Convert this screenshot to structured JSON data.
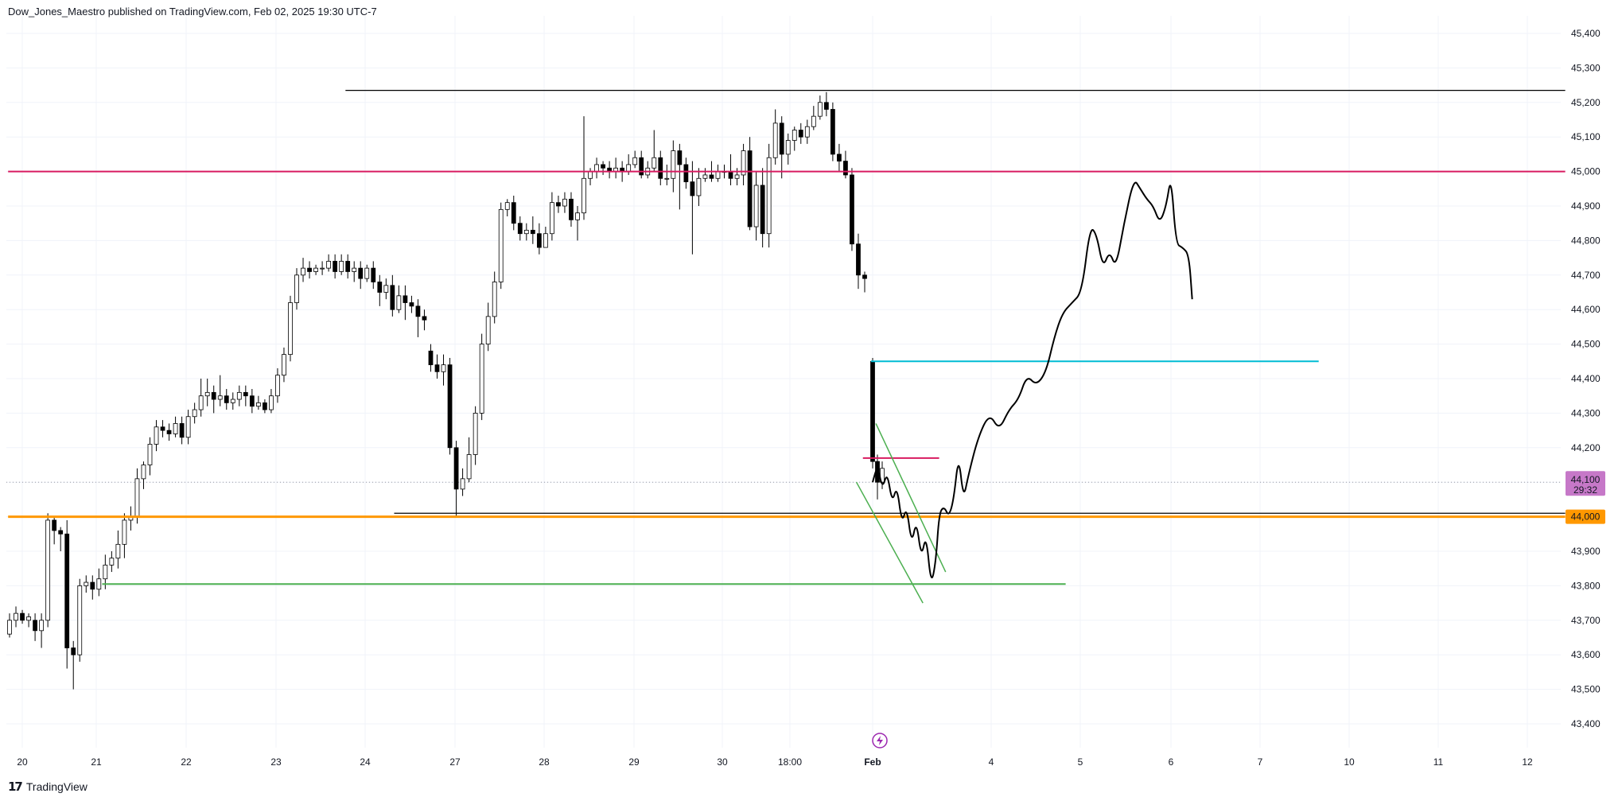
{
  "header": {
    "attribution": "Dow_Jones_Maestro published on TradingView.com, Feb 02, 2025 19:30 UTC-7"
  },
  "footer": {
    "logo_mark": "17",
    "logo_text": "TradingView"
  },
  "colors": {
    "up": "#ffffff",
    "down": "#000000",
    "outline": "#000000",
    "magenta": "#d81b60",
    "orange": "#ff9800",
    "cyan": "#00bcd4",
    "green": "#4caf50",
    "level_line": "#000000",
    "grid": "#f0f3fa",
    "price_badge_bg": "#c678c8",
    "level_badge_bg": "#ff9800"
  },
  "chart_data": {
    "type": "candlestick",
    "symbol": "",
    "y_axis": {
      "ticks": [
        "45,400",
        "45,300",
        "45,200",
        "45,100",
        "45,000",
        "44,900",
        "44,800",
        "44,700",
        "44,600",
        "44,500",
        "44,400",
        "44,300",
        "44,200",
        "44,100",
        "44,000",
        "43,900",
        "43,800",
        "43,700",
        "43,600",
        "43,500",
        "43,400"
      ],
      "range": [
        43360,
        45440
      ]
    },
    "x_axis": {
      "ticks": [
        "20",
        "21",
        "22",
        "23",
        "24",
        "27",
        "28",
        "29",
        "30",
        "18:00",
        "Feb",
        "4",
        "5",
        "6",
        "7",
        "10",
        "11",
        "12"
      ]
    },
    "current_price": {
      "value": "44,100",
      "countdown": "29:32"
    },
    "level_badge": "44,000",
    "candles": [
      [
        43660,
        43700,
        43650,
        43720
      ],
      [
        43700,
        43720,
        43680,
        43740
      ],
      [
        43720,
        43700,
        43690,
        43730
      ],
      [
        43700,
        43710,
        43680,
        43720
      ],
      [
        43700,
        43670,
        43640,
        43720
      ],
      [
        43670,
        43700,
        43620,
        43720
      ],
      [
        43700,
        43990,
        43680,
        44010
      ],
      [
        43990,
        43960,
        43920,
        44000
      ],
      [
        43960,
        43950,
        43900,
        43970
      ],
      [
        43950,
        43620,
        43560,
        43990
      ],
      [
        43620,
        43600,
        43500,
        43640
      ],
      [
        43600,
        43800,
        43580,
        43820
      ],
      [
        43800,
        43810,
        43780,
        43830
      ],
      [
        43810,
        43790,
        43760,
        43830
      ],
      [
        43790,
        43820,
        43770,
        43850
      ],
      [
        43820,
        43860,
        43790,
        43890
      ],
      [
        43860,
        43880,
        43840,
        43900
      ],
      [
        43880,
        43920,
        43850,
        43960
      ],
      [
        43920,
        43990,
        43880,
        44010
      ],
      [
        43990,
        44000,
        43960,
        44030
      ],
      [
        44000,
        44110,
        43980,
        44140
      ],
      [
        44110,
        44150,
        44080,
        44160
      ],
      [
        44150,
        44210,
        44120,
        44230
      ],
      [
        44210,
        44260,
        44190,
        44280
      ],
      [
        44260,
        44250,
        44230,
        44280
      ],
      [
        44250,
        44240,
        44220,
        44270
      ],
      [
        44240,
        44270,
        44230,
        44290
      ],
      [
        44270,
        44230,
        44210,
        44290
      ],
      [
        44230,
        44290,
        44210,
        44310
      ],
      [
        44290,
        44310,
        44270,
        44330
      ],
      [
        44310,
        44350,
        44290,
        44400
      ],
      [
        44350,
        44360,
        44320,
        44400
      ],
      [
        44360,
        44340,
        44300,
        44380
      ],
      [
        44340,
        44350,
        44320,
        44410
      ],
      [
        44350,
        44330,
        44310,
        44370
      ],
      [
        44330,
        44340,
        44310,
        44360
      ],
      [
        44340,
        44360,
        44320,
        44380
      ],
      [
        44360,
        44350,
        44320,
        44380
      ],
      [
        44350,
        44320,
        44300,
        44370
      ],
      [
        44320,
        44330,
        44310,
        44350
      ],
      [
        44330,
        44310,
        44300,
        44340
      ],
      [
        44310,
        44350,
        44300,
        44370
      ],
      [
        44350,
        44410,
        44330,
        44430
      ],
      [
        44410,
        44470,
        44390,
        44490
      ],
      [
        44470,
        44620,
        44450,
        44640
      ],
      [
        44620,
        44700,
        44600,
        44720
      ],
      [
        44700,
        44720,
        44680,
        44750
      ],
      [
        44720,
        44710,
        44690,
        44740
      ],
      [
        44710,
        44720,
        44700,
        44730
      ],
      [
        44720,
        44720,
        44700,
        44740
      ],
      [
        44720,
        44740,
        44710,
        44760
      ],
      [
        44740,
        44710,
        44690,
        44760
      ],
      [
        44710,
        44740,
        44700,
        44760
      ],
      [
        44740,
        44710,
        44690,
        44760
      ],
      [
        44710,
        44720,
        44680,
        44740
      ],
      [
        44720,
        44690,
        44660,
        44740
      ],
      [
        44690,
        44720,
        44680,
        44730
      ],
      [
        44720,
        44680,
        44660,
        44740
      ],
      [
        44680,
        44650,
        44610,
        44700
      ],
      [
        44650,
        44670,
        44630,
        44690
      ],
      [
        44670,
        44600,
        44580,
        44700
      ],
      [
        44600,
        44640,
        44590,
        44670
      ],
      [
        44640,
        44620,
        44570,
        44670
      ],
      [
        44620,
        44610,
        44590,
        44640
      ],
      [
        44610,
        44580,
        44520,
        44630
      ],
      [
        44580,
        44570,
        44540,
        44600
      ],
      [
        44480,
        44440,
        44420,
        44500
      ],
      [
        44440,
        44420,
        44400,
        44470
      ],
      [
        44420,
        44440,
        44380,
        44470
      ],
      [
        44440,
        44200,
        44180,
        44460
      ],
      [
        44200,
        44080,
        44000,
        44220
      ],
      [
        44080,
        44110,
        44060,
        44140
      ],
      [
        44110,
        44180,
        44100,
        44230
      ],
      [
        44180,
        44300,
        44150,
        44320
      ],
      [
        44300,
        44500,
        44280,
        44530
      ],
      [
        44500,
        44580,
        44480,
        44620
      ],
      [
        44580,
        44680,
        44560,
        44710
      ],
      [
        44680,
        44890,
        44660,
        44910
      ],
      [
        44890,
        44910,
        44870,
        44920
      ],
      [
        44910,
        44850,
        44830,
        44930
      ],
      [
        44850,
        44820,
        44800,
        44870
      ],
      [
        44820,
        44830,
        44800,
        44850
      ],
      [
        44830,
        44820,
        44790,
        44870
      ],
      [
        44820,
        44780,
        44760,
        44850
      ],
      [
        44780,
        44820,
        44780,
        44840
      ],
      [
        44820,
        44910,
        44800,
        44940
      ],
      [
        44910,
        44900,
        44880,
        44930
      ],
      [
        44900,
        44920,
        44880,
        44940
      ],
      [
        44920,
        44860,
        44840,
        44940
      ],
      [
        44860,
        44880,
        44800,
        44900
      ],
      [
        44880,
        44980,
        44860,
        45160
      ],
      [
        44980,
        45000,
        44960,
        45010
      ],
      [
        45000,
        45020,
        44980,
        45040
      ],
      [
        45020,
        45010,
        44990,
        45030
      ],
      [
        45010,
        45000,
        44980,
        45030
      ],
      [
        45000,
        45010,
        44980,
        45040
      ],
      [
        45010,
        45000,
        44970,
        45030
      ],
      [
        45000,
        45020,
        44990,
        45050
      ],
      [
        45020,
        45040,
        45010,
        45060
      ],
      [
        45040,
        44990,
        44980,
        45060
      ],
      [
        44990,
        45010,
        44980,
        45030
      ],
      [
        45010,
        45040,
        45000,
        45120
      ],
      [
        45040,
        44980,
        44960,
        45060
      ],
      [
        44980,
        44980,
        44960,
        45020
      ],
      [
        44980,
        45060,
        44940,
        45090
      ],
      [
        45060,
        45020,
        44890,
        45080
      ],
      [
        45020,
        44970,
        44950,
        45040
      ],
      [
        44970,
        44930,
        44760,
        45030
      ],
      [
        44930,
        44980,
        44900,
        45010
      ],
      [
        44980,
        44990,
        44970,
        45010
      ],
      [
        44990,
        44980,
        44970,
        45030
      ],
      [
        44980,
        45000,
        44970,
        45020
      ],
      [
        45000,
        45000,
        44980,
        45020
      ],
      [
        45000,
        44980,
        44960,
        45050
      ],
      [
        44980,
        44990,
        44960,
        45010
      ],
      [
        44990,
        45060,
        44960,
        45080
      ],
      [
        45060,
        44840,
        44830,
        45100
      ],
      [
        44840,
        44960,
        44800,
        45000
      ],
      [
        44960,
        44820,
        44780,
        45010
      ],
      [
        44820,
        45040,
        44780,
        45080
      ],
      [
        45040,
        45140,
        45020,
        45180
      ],
      [
        45140,
        45050,
        44980,
        45160
      ],
      [
        45050,
        45090,
        45020,
        45110
      ],
      [
        45090,
        45120,
        45060,
        45130
      ],
      [
        45120,
        45100,
        45080,
        45140
      ],
      [
        45100,
        45130,
        45080,
        45150
      ],
      [
        45130,
        45160,
        45120,
        45190
      ],
      [
        45160,
        45200,
        45150,
        45220
      ],
      [
        45200,
        45180,
        45160,
        45230
      ],
      [
        45180,
        45050,
        45030,
        45200
      ],
      [
        45050,
        45030,
        45000,
        45080
      ],
      [
        45030,
        44990,
        44980,
        45060
      ],
      [
        44990,
        44790,
        44770,
        45010
      ],
      [
        44790,
        44700,
        44660,
        44820
      ],
      [
        44700,
        44690,
        44650,
        44710
      ]
    ],
    "post_gap_candles": [
      [
        44450,
        44160,
        44140,
        44460
      ],
      [
        44160,
        44100,
        44050,
        44180
      ],
      [
        44100,
        44140,
        44080,
        44160
      ]
    ],
    "horizontal_levels": [
      {
        "value": 45235,
        "color_key": "level_line",
        "from": 0.213,
        "to": 0.965,
        "width": 1.2
      },
      {
        "value": 45000,
        "color_key": "magenta",
        "from": 0.005,
        "to": 0.965,
        "width": 2
      },
      {
        "value": 44450,
        "color_key": "cyan",
        "from": 0.537,
        "to": 0.813,
        "width": 2
      },
      {
        "value": 44170,
        "color_key": "magenta",
        "from": 0.532,
        "to": 0.579,
        "width": 2
      },
      {
        "value": 44010,
        "color_key": "level_line",
        "from": 0.243,
        "to": 0.965,
        "width": 1.2
      },
      {
        "value": 44000,
        "color_key": "orange",
        "from": 0.005,
        "to": 0.965,
        "width": 3
      },
      {
        "value": 43805,
        "color_key": "green",
        "from": 0.063,
        "to": 0.657,
        "width": 2
      }
    ],
    "channel": [
      {
        "from": [
          0.528,
          44100
        ],
        "to": [
          0.569,
          43750
        ]
      },
      {
        "from": [
          0.54,
          44270
        ],
        "to": [
          0.583,
          43840
        ]
      }
    ],
    "projection_path": [
      [
        0.538,
        44100
      ],
      [
        0.541,
        44150
      ],
      [
        0.544,
        44080
      ],
      [
        0.547,
        44130
      ],
      [
        0.55,
        44040
      ],
      [
        0.553,
        44090
      ],
      [
        0.556,
        43980
      ],
      [
        0.559,
        44030
      ],
      [
        0.562,
        43920
      ],
      [
        0.565,
        43990
      ],
      [
        0.568,
        43880
      ],
      [
        0.571,
        43950
      ],
      [
        0.574,
        43800
      ],
      [
        0.577,
        43870
      ],
      [
        0.579,
        44010
      ],
      [
        0.582,
        44030
      ],
      [
        0.585,
        44000
      ],
      [
        0.588,
        44050
      ],
      [
        0.591,
        44180
      ],
      [
        0.594,
        44050
      ],
      [
        0.597,
        44120
      ],
      [
        0.603,
        44230
      ],
      [
        0.61,
        44300
      ],
      [
        0.616,
        44250
      ],
      [
        0.622,
        44310
      ],
      [
        0.628,
        44340
      ],
      [
        0.633,
        44410
      ],
      [
        0.639,
        44380
      ],
      [
        0.645,
        44420
      ],
      [
        0.65,
        44520
      ],
      [
        0.655,
        44590
      ],
      [
        0.661,
        44620
      ],
      [
        0.667,
        44650
      ],
      [
        0.672,
        44840
      ],
      [
        0.676,
        44820
      ],
      [
        0.68,
        44720
      ],
      [
        0.684,
        44770
      ],
      [
        0.688,
        44720
      ],
      [
        0.693,
        44850
      ],
      [
        0.699,
        44980
      ],
      [
        0.703,
        44950
      ],
      [
        0.707,
        44920
      ],
      [
        0.711,
        44900
      ],
      [
        0.715,
        44850
      ],
      [
        0.719,
        44900
      ],
      [
        0.722,
        44990
      ],
      [
        0.725,
        44790
      ],
      [
        0.729,
        44780
      ],
      [
        0.733,
        44760
      ],
      [
        0.735,
        44630
      ]
    ]
  }
}
